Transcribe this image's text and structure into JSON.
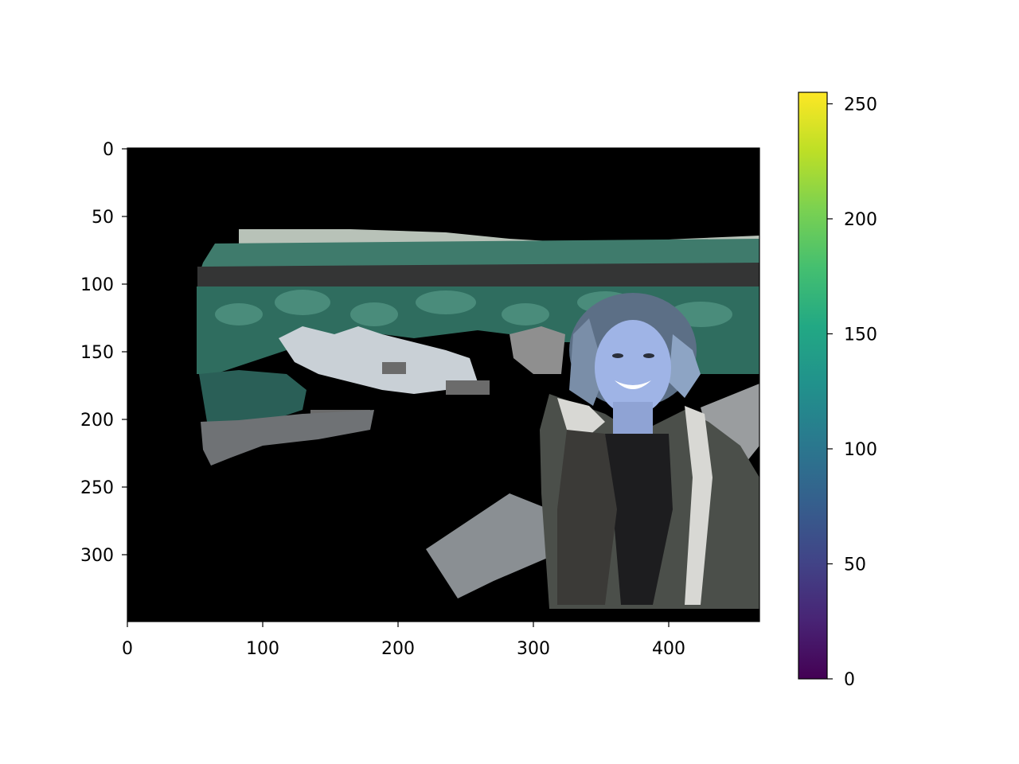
{
  "image_axes": {
    "x_ticks": [
      "0",
      "100",
      "200",
      "300",
      "400"
    ],
    "y_ticks": [
      "0",
      "50",
      "100",
      "150",
      "200",
      "250",
      "300"
    ],
    "x_range": [
      0,
      467
    ],
    "y_range": [
      0,
      350
    ]
  },
  "colorbar": {
    "colormap": "viridis",
    "range": [
      0,
      255
    ],
    "ticks": [
      "0",
      "50",
      "100",
      "150",
      "200",
      "250"
    ]
  },
  "image_content": {
    "description_icon": "photo-composite",
    "background_color": "#000000",
    "colors": {
      "vegetation": "#3d7a6a",
      "cliff": "#3a3a3a",
      "waterfall": "#c9d0d6",
      "skin": "#9fb4e6",
      "hair": "#5c6f86",
      "jacket": "#4b4f4a",
      "wood": "#8a8f93"
    }
  }
}
